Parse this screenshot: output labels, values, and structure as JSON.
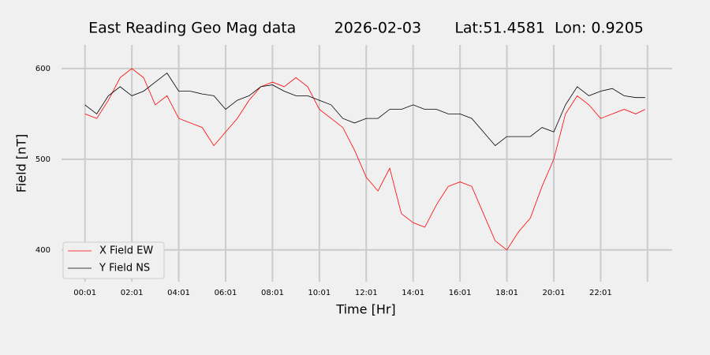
{
  "chart_data": {
    "type": "line",
    "title": "East Reading Geo Mag data        2026-02-03       Lat:51.4581  Lon: 0.9205",
    "xlabel": "Time  [Hr]",
    "ylabel": "Field  [nT]",
    "x": [
      0,
      0.5,
      1,
      1.5,
      2,
      2.5,
      3,
      3.5,
      4,
      4.5,
      5,
      5.5,
      6,
      6.5,
      7,
      7.5,
      8,
      8.5,
      9,
      9.5,
      10,
      10.5,
      11,
      11.5,
      12,
      12.5,
      13,
      13.5,
      14,
      14.5,
      15,
      15.5,
      16,
      16.5,
      17,
      17.5,
      18,
      18.5,
      19,
      19.5,
      20,
      20.5,
      21,
      21.5,
      22,
      22.5,
      23,
      23.5,
      23.9
    ],
    "series": [
      {
        "name": "X Field EW",
        "color": "#ff0000",
        "values": [
          550,
          545,
          565,
          590,
          600,
          590,
          560,
          570,
          545,
          540,
          535,
          515,
          530,
          545,
          565,
          580,
          585,
          580,
          590,
          580,
          555,
          545,
          535,
          510,
          480,
          465,
          490,
          440,
          430,
          425,
          450,
          470,
          475,
          470,
          440,
          410,
          400,
          420,
          435,
          470,
          500,
          550,
          570,
          560,
          545,
          550,
          555,
          550,
          555
        ]
      },
      {
        "name": "Y Field NS",
        "color": "#000000",
        "values": [
          560,
          550,
          570,
          580,
          570,
          575,
          585,
          595,
          575,
          575,
          572,
          570,
          555,
          565,
          570,
          580,
          582,
          575,
          570,
          570,
          565,
          560,
          545,
          540,
          545,
          545,
          555,
          555,
          560,
          555,
          555,
          550,
          550,
          545,
          530,
          515,
          525,
          525,
          525,
          535,
          530,
          560,
          580,
          570,
          575,
          578,
          570,
          568,
          568
        ]
      }
    ],
    "xlim": [
      -1,
      25.05
    ],
    "xticks": [
      {
        "value": 0,
        "label": "00:01"
      },
      {
        "value": 2,
        "label": "02:01"
      },
      {
        "value": 4,
        "label": "04:01"
      },
      {
        "value": 6,
        "label": "06:01"
      },
      {
        "value": 8,
        "label": "08:01"
      },
      {
        "value": 10,
        "label": "10:01"
      },
      {
        "value": 12,
        "label": "12:01"
      },
      {
        "value": 14,
        "label": "14:01"
      },
      {
        "value": 16,
        "label": "16:01"
      },
      {
        "value": 18,
        "label": "18:01"
      },
      {
        "value": 20,
        "label": "20:01"
      },
      {
        "value": 22,
        "label": "22:01"
      },
      {
        "value": 24,
        "label": null
      }
    ],
    "ylim": [
      365,
      626
    ],
    "yticks": [
      400,
      500,
      600
    ],
    "grid": true,
    "legend": "lower-left"
  }
}
